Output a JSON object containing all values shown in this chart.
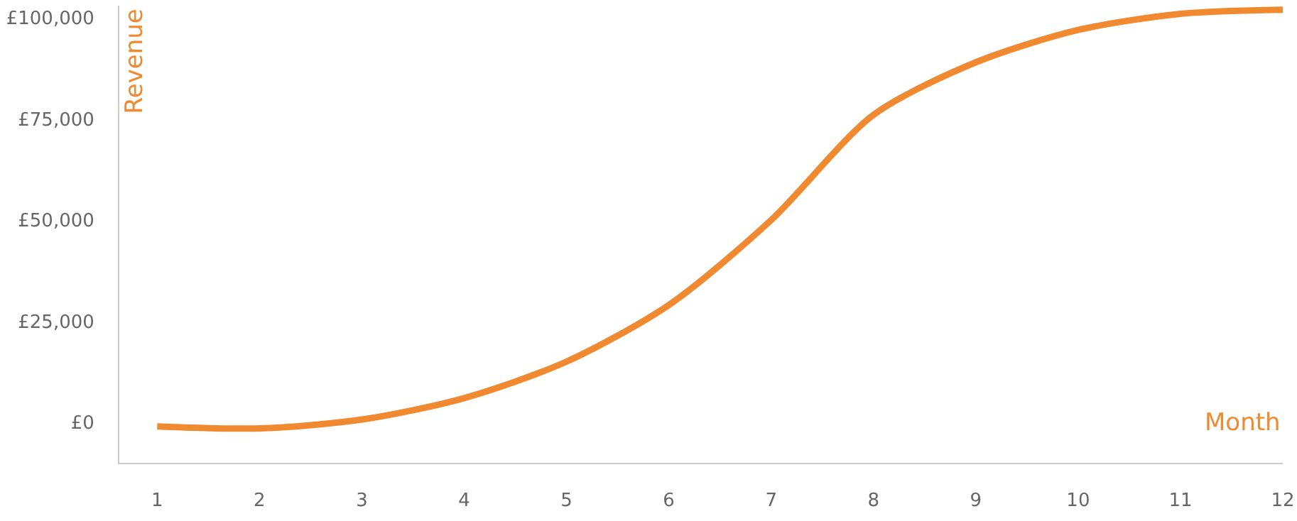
{
  "chart_data": {
    "type": "line",
    "xlabel": "Month",
    "ylabel": "Revenue",
    "x": [
      1,
      2,
      3,
      4,
      5,
      6,
      7,
      8,
      9,
      10,
      11,
      12
    ],
    "series": [
      {
        "color": "#f0892f",
        "values": [
          -1000,
          -1500,
          700,
          6000,
          15000,
          29000,
          50000,
          76000,
          89000,
          97000,
          101000,
          102000
        ]
      }
    ],
    "xlim": [
      0.63,
      12
    ],
    "xticks": [
      1,
      2,
      3,
      4,
      5,
      6,
      7,
      8,
      9,
      10,
      11,
      12
    ],
    "ylim": [
      -10000,
      103000
    ],
    "yticks": [
      {
        "value": 0,
        "label": "£0"
      },
      {
        "value": 25000,
        "label": "£25,000"
      },
      {
        "value": 50000,
        "label": "£50,000"
      },
      {
        "value": 75000,
        "label": "£75,000"
      },
      {
        "value": 100000,
        "label": "£100,000"
      }
    ],
    "grid": false,
    "legend": false,
    "marker": "none",
    "line_style": "solid"
  }
}
